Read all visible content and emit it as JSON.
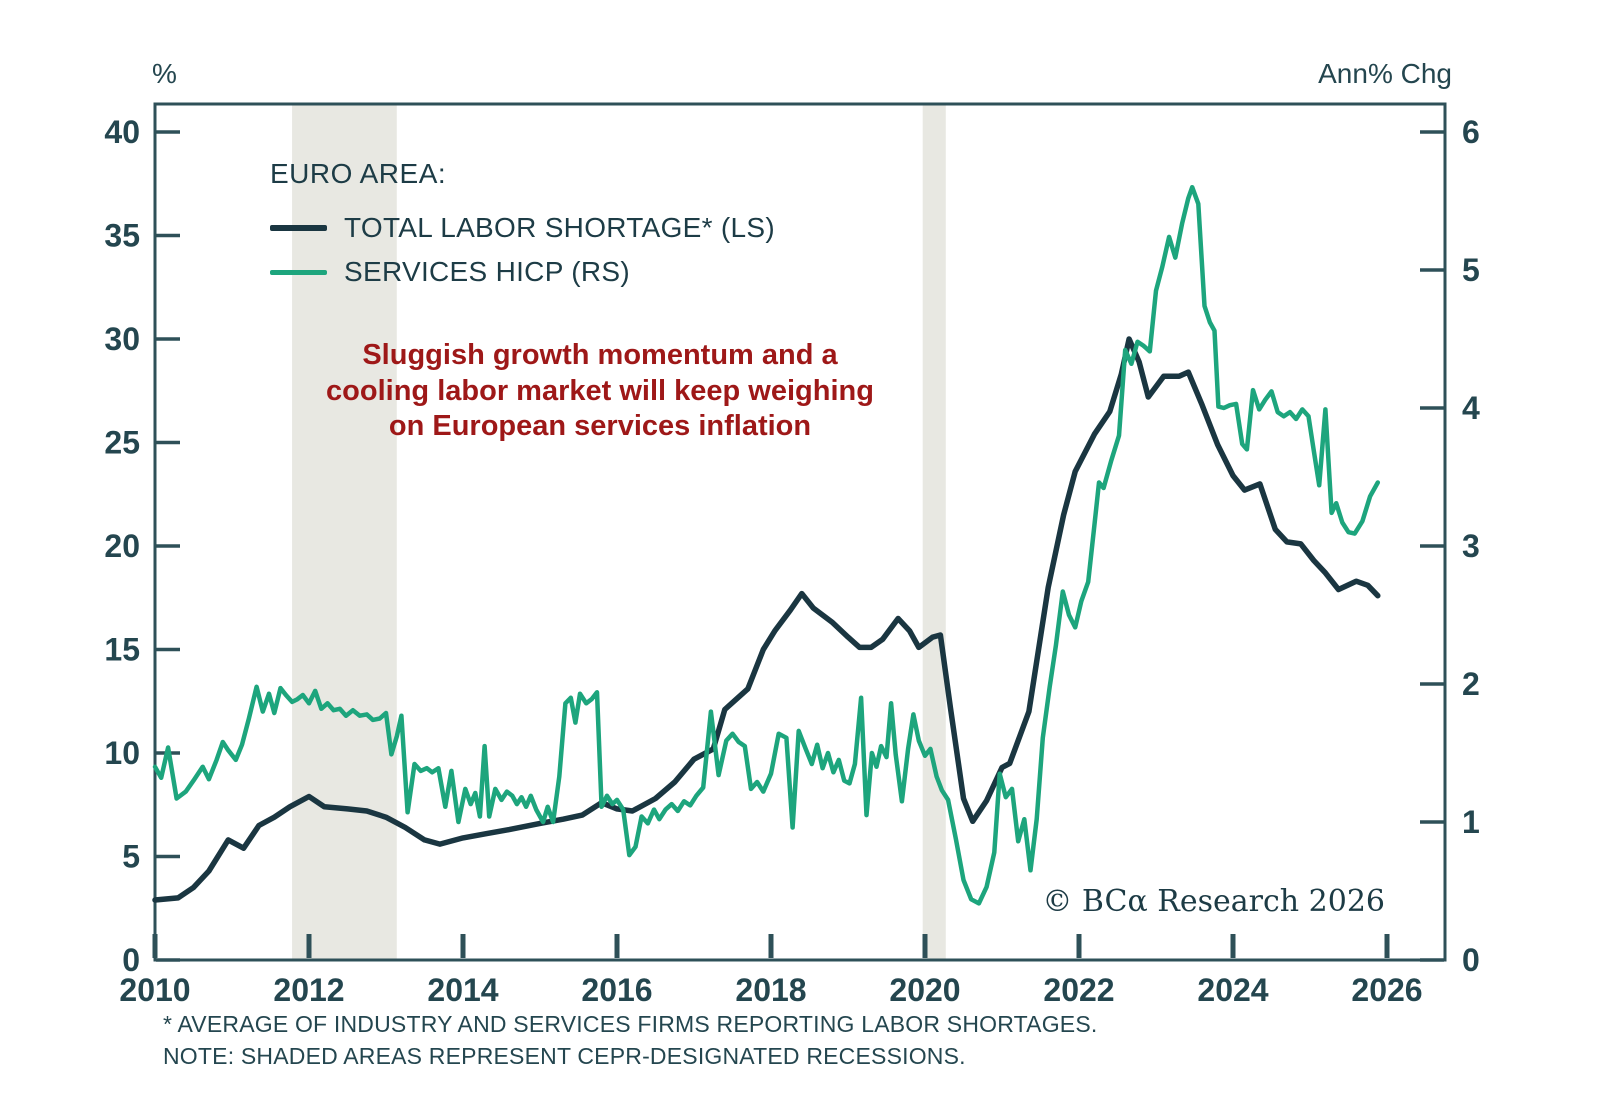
{
  "axes": {
    "left_unit": "%",
    "right_unit": "Ann% Chg"
  },
  "legend": {
    "heading": "EURO AREA:",
    "items": [
      {
        "label": "TOTAL LABOR SHORTAGE* (LS)",
        "color": "#1a3641"
      },
      {
        "label": "SERVICES HICP (RS)",
        "color": "#1da57d"
      }
    ]
  },
  "annotation": {
    "lines": [
      "Sluggish growth momentum and a",
      "cooling labor market will keep weighing",
      "on European services inflation"
    ]
  },
  "copyright": "© BCα Research 2026",
  "footnotes": [
    "* AVERAGE OF INDUSTRY AND SERVICES FIRMS REPORTING LABOR SHORTAGES.",
    "NOTE: SHADED AREAS REPRESENT CEPR-DESIGNATED RECESSIONS."
  ],
  "colors": {
    "navy": "#1a3641",
    "green": "#1da57d",
    "red": "#9e1818",
    "frame": "#2e5058",
    "band": "#e8e8e2"
  },
  "chart_data": {
    "type": "line",
    "title": "",
    "x_axis": {
      "range": [
        2010,
        2026.75
      ],
      "ticks": [
        2010,
        2012,
        2014,
        2016,
        2018,
        2020,
        2022,
        2024,
        2026
      ]
    },
    "left_axis": {
      "label": "%",
      "range": [
        0,
        41.3
      ],
      "ticks": [
        0,
        5,
        10,
        15,
        20,
        25,
        30,
        35,
        40
      ]
    },
    "right_axis": {
      "label": "Ann% Chg",
      "range": [
        0,
        6.2
      ],
      "ticks": [
        0,
        1,
        2,
        3,
        4,
        5,
        6
      ]
    },
    "grid": false,
    "legend_position": "top-left",
    "recession_bands": [
      [
        2011.78,
        2013.14
      ],
      [
        2019.97,
        2020.27
      ]
    ],
    "series": [
      {
        "name": "TOTAL LABOR SHORTAGE* (LS)",
        "axis": "left",
        "points": [
          [
            2010.0,
            2.9
          ],
          [
            2010.3,
            3.0
          ],
          [
            2010.5,
            3.5
          ],
          [
            2010.7,
            4.3
          ],
          [
            2010.95,
            5.8
          ],
          [
            2011.15,
            5.4
          ],
          [
            2011.35,
            6.5
          ],
          [
            2011.55,
            6.9
          ],
          [
            2011.75,
            7.4
          ],
          [
            2012.0,
            7.9
          ],
          [
            2012.2,
            7.4
          ],
          [
            2012.5,
            7.3
          ],
          [
            2012.75,
            7.2
          ],
          [
            2013.0,
            6.9
          ],
          [
            2013.25,
            6.4
          ],
          [
            2013.5,
            5.8
          ],
          [
            2013.7,
            5.6
          ],
          [
            2014.0,
            5.9
          ],
          [
            2014.3,
            6.1
          ],
          [
            2014.6,
            6.3
          ],
          [
            2015.0,
            6.6
          ],
          [
            2015.3,
            6.8
          ],
          [
            2015.55,
            7.0
          ],
          [
            2015.8,
            7.6
          ],
          [
            2016.0,
            7.3
          ],
          [
            2016.2,
            7.2
          ],
          [
            2016.5,
            7.8
          ],
          [
            2016.75,
            8.6
          ],
          [
            2017.0,
            9.7
          ],
          [
            2017.25,
            10.2
          ],
          [
            2017.4,
            12.1
          ],
          [
            2017.55,
            12.6
          ],
          [
            2017.7,
            13.1
          ],
          [
            2017.9,
            15.0
          ],
          [
            2018.05,
            15.9
          ],
          [
            2018.25,
            16.9
          ],
          [
            2018.4,
            17.7
          ],
          [
            2018.55,
            17.0
          ],
          [
            2018.8,
            16.3
          ],
          [
            2019.0,
            15.6
          ],
          [
            2019.15,
            15.1
          ],
          [
            2019.3,
            15.1
          ],
          [
            2019.45,
            15.5
          ],
          [
            2019.65,
            16.5
          ],
          [
            2019.8,
            15.9
          ],
          [
            2019.92,
            15.1
          ],
          [
            2020.1,
            15.6
          ],
          [
            2020.2,
            15.7
          ],
          [
            2020.33,
            12.2
          ],
          [
            2020.5,
            7.8
          ],
          [
            2020.62,
            6.7
          ],
          [
            2020.8,
            7.7
          ],
          [
            2021.0,
            9.3
          ],
          [
            2021.1,
            9.5
          ],
          [
            2021.35,
            12.0
          ],
          [
            2021.6,
            18.0
          ],
          [
            2021.8,
            21.5
          ],
          [
            2021.95,
            23.6
          ],
          [
            2022.2,
            25.4
          ],
          [
            2022.4,
            26.5
          ],
          [
            2022.55,
            28.3
          ],
          [
            2022.65,
            30.0
          ],
          [
            2022.78,
            28.9
          ],
          [
            2022.9,
            27.2
          ],
          [
            2023.1,
            28.2
          ],
          [
            2023.3,
            28.2
          ],
          [
            2023.42,
            28.4
          ],
          [
            2023.6,
            26.8
          ],
          [
            2023.8,
            24.9
          ],
          [
            2024.0,
            23.4
          ],
          [
            2024.15,
            22.7
          ],
          [
            2024.35,
            23.0
          ],
          [
            2024.55,
            20.8
          ],
          [
            2024.7,
            20.2
          ],
          [
            2024.88,
            20.1
          ],
          [
            2025.05,
            19.3
          ],
          [
            2025.2,
            18.7
          ],
          [
            2025.37,
            17.9
          ],
          [
            2025.6,
            18.3
          ],
          [
            2025.75,
            18.1
          ],
          [
            2025.88,
            17.6
          ]
        ]
      },
      {
        "name": "SERVICES HICP (RS)",
        "axis": "right",
        "points": [
          [
            2010.0,
            1.4
          ],
          [
            2010.08,
            1.32
          ],
          [
            2010.17,
            1.54
          ],
          [
            2010.28,
            1.17
          ],
          [
            2010.4,
            1.22
          ],
          [
            2010.5,
            1.3
          ],
          [
            2010.62,
            1.4
          ],
          [
            2010.7,
            1.31
          ],
          [
            2010.8,
            1.45
          ],
          [
            2010.88,
            1.58
          ],
          [
            2010.95,
            1.52
          ],
          [
            2011.05,
            1.45
          ],
          [
            2011.13,
            1.56
          ],
          [
            2011.22,
            1.75
          ],
          [
            2011.32,
            1.98
          ],
          [
            2011.4,
            1.8
          ],
          [
            2011.48,
            1.93
          ],
          [
            2011.55,
            1.79
          ],
          [
            2011.63,
            1.97
          ],
          [
            2011.7,
            1.92
          ],
          [
            2011.78,
            1.87
          ],
          [
            2011.85,
            1.89
          ],
          [
            2011.92,
            1.92
          ],
          [
            2012.0,
            1.86
          ],
          [
            2012.08,
            1.95
          ],
          [
            2012.16,
            1.82
          ],
          [
            2012.24,
            1.86
          ],
          [
            2012.32,
            1.81
          ],
          [
            2012.4,
            1.82
          ],
          [
            2012.48,
            1.77
          ],
          [
            2012.57,
            1.81
          ],
          [
            2012.66,
            1.77
          ],
          [
            2012.75,
            1.78
          ],
          [
            2012.83,
            1.74
          ],
          [
            2012.92,
            1.75
          ],
          [
            2013.0,
            1.79
          ],
          [
            2013.07,
            1.49
          ],
          [
            2013.14,
            1.62
          ],
          [
            2013.2,
            1.77
          ],
          [
            2013.28,
            1.07
          ],
          [
            2013.37,
            1.42
          ],
          [
            2013.45,
            1.37
          ],
          [
            2013.53,
            1.39
          ],
          [
            2013.6,
            1.36
          ],
          [
            2013.68,
            1.39
          ],
          [
            2013.77,
            1.11
          ],
          [
            2013.85,
            1.37
          ],
          [
            2013.94,
            1.0
          ],
          [
            2014.03,
            1.24
          ],
          [
            2014.1,
            1.13
          ],
          [
            2014.16,
            1.21
          ],
          [
            2014.22,
            1.04
          ],
          [
            2014.28,
            1.55
          ],
          [
            2014.34,
            1.04
          ],
          [
            2014.42,
            1.24
          ],
          [
            2014.5,
            1.16
          ],
          [
            2014.57,
            1.22
          ],
          [
            2014.64,
            1.19
          ],
          [
            2014.7,
            1.13
          ],
          [
            2014.76,
            1.18
          ],
          [
            2014.82,
            1.11
          ],
          [
            2014.88,
            1.19
          ],
          [
            2014.95,
            1.09
          ],
          [
            2015.04,
            1.0
          ],
          [
            2015.1,
            1.11
          ],
          [
            2015.17,
            1.0
          ],
          [
            2015.25,
            1.33
          ],
          [
            2015.33,
            1.86
          ],
          [
            2015.4,
            1.9
          ],
          [
            2015.46,
            1.72
          ],
          [
            2015.52,
            1.93
          ],
          [
            2015.6,
            1.86
          ],
          [
            2015.67,
            1.89
          ],
          [
            2015.74,
            1.94
          ],
          [
            2015.8,
            1.11
          ],
          [
            2015.87,
            1.19
          ],
          [
            2015.94,
            1.13
          ],
          [
            2016.0,
            1.16
          ],
          [
            2016.08,
            1.09
          ],
          [
            2016.16,
            0.76
          ],
          [
            2016.24,
            0.82
          ],
          [
            2016.32,
            1.04
          ],
          [
            2016.4,
            0.99
          ],
          [
            2016.48,
            1.09
          ],
          [
            2016.55,
            1.02
          ],
          [
            2016.63,
            1.09
          ],
          [
            2016.71,
            1.13
          ],
          [
            2016.79,
            1.08
          ],
          [
            2016.87,
            1.15
          ],
          [
            2016.95,
            1.12
          ],
          [
            2017.03,
            1.19
          ],
          [
            2017.12,
            1.25
          ],
          [
            2017.22,
            1.8
          ],
          [
            2017.32,
            1.34
          ],
          [
            2017.42,
            1.59
          ],
          [
            2017.5,
            1.64
          ],
          [
            2017.58,
            1.58
          ],
          [
            2017.66,
            1.55
          ],
          [
            2017.74,
            1.24
          ],
          [
            2017.82,
            1.29
          ],
          [
            2017.9,
            1.22
          ],
          [
            2018.0,
            1.35
          ],
          [
            2018.1,
            1.64
          ],
          [
            2018.2,
            1.61
          ],
          [
            2018.28,
            0.96
          ],
          [
            2018.36,
            1.66
          ],
          [
            2018.45,
            1.53
          ],
          [
            2018.53,
            1.42
          ],
          [
            2018.6,
            1.56
          ],
          [
            2018.67,
            1.39
          ],
          [
            2018.74,
            1.5
          ],
          [
            2018.81,
            1.36
          ],
          [
            2018.88,
            1.45
          ],
          [
            2018.95,
            1.3
          ],
          [
            2019.02,
            1.28
          ],
          [
            2019.09,
            1.42
          ],
          [
            2019.17,
            1.9
          ],
          [
            2019.24,
            1.05
          ],
          [
            2019.31,
            1.5
          ],
          [
            2019.37,
            1.4
          ],
          [
            2019.43,
            1.55
          ],
          [
            2019.5,
            1.47
          ],
          [
            2019.56,
            1.86
          ],
          [
            2019.62,
            1.49
          ],
          [
            2019.7,
            1.15
          ],
          [
            2019.78,
            1.53
          ],
          [
            2019.85,
            1.78
          ],
          [
            2019.92,
            1.59
          ],
          [
            2020.0,
            1.48
          ],
          [
            2020.07,
            1.53
          ],
          [
            2020.15,
            1.33
          ],
          [
            2020.22,
            1.23
          ],
          [
            2020.3,
            1.16
          ],
          [
            2020.4,
            0.88
          ],
          [
            2020.5,
            0.58
          ],
          [
            2020.6,
            0.44
          ],
          [
            2020.7,
            0.41
          ],
          [
            2020.8,
            0.53
          ],
          [
            2020.9,
            0.78
          ],
          [
            2020.97,
            1.35
          ],
          [
            2021.05,
            1.18
          ],
          [
            2021.13,
            1.24
          ],
          [
            2021.21,
            0.86
          ],
          [
            2021.29,
            1.02
          ],
          [
            2021.37,
            0.65
          ],
          [
            2021.45,
            1.02
          ],
          [
            2021.53,
            1.61
          ],
          [
            2021.62,
            1.98
          ],
          [
            2021.7,
            2.28
          ],
          [
            2021.79,
            2.67
          ],
          [
            2021.87,
            2.5
          ],
          [
            2021.95,
            2.41
          ],
          [
            2022.03,
            2.6
          ],
          [
            2022.12,
            2.74
          ],
          [
            2022.2,
            3.15
          ],
          [
            2022.26,
            3.46
          ],
          [
            2022.32,
            3.42
          ],
          [
            2022.42,
            3.62
          ],
          [
            2022.52,
            3.8
          ],
          [
            2022.6,
            4.42
          ],
          [
            2022.68,
            4.32
          ],
          [
            2022.76,
            4.48
          ],
          [
            2022.84,
            4.45
          ],
          [
            2022.92,
            4.41
          ],
          [
            2023.0,
            4.85
          ],
          [
            2023.08,
            5.02
          ],
          [
            2023.17,
            5.24
          ],
          [
            2023.25,
            5.09
          ],
          [
            2023.34,
            5.34
          ],
          [
            2023.42,
            5.52
          ],
          [
            2023.47,
            5.6
          ],
          [
            2023.55,
            5.48
          ],
          [
            2023.63,
            4.74
          ],
          [
            2023.7,
            4.62
          ],
          [
            2023.76,
            4.56
          ],
          [
            2023.81,
            4.01
          ],
          [
            2023.88,
            4.0
          ],
          [
            2023.96,
            4.02
          ],
          [
            2024.04,
            4.03
          ],
          [
            2024.12,
            3.74
          ],
          [
            2024.18,
            3.7
          ],
          [
            2024.26,
            4.13
          ],
          [
            2024.34,
            3.99
          ],
          [
            2024.42,
            4.06
          ],
          [
            2024.5,
            4.12
          ],
          [
            2024.58,
            3.97
          ],
          [
            2024.66,
            3.94
          ],
          [
            2024.74,
            3.97
          ],
          [
            2024.82,
            3.92
          ],
          [
            2024.9,
            3.99
          ],
          [
            2024.98,
            3.94
          ],
          [
            2025.05,
            3.69
          ],
          [
            2025.12,
            3.44
          ],
          [
            2025.2,
            3.99
          ],
          [
            2025.28,
            3.24
          ],
          [
            2025.34,
            3.31
          ],
          [
            2025.42,
            3.17
          ],
          [
            2025.5,
            3.1
          ],
          [
            2025.58,
            3.09
          ],
          [
            2025.68,
            3.18
          ],
          [
            2025.78,
            3.36
          ],
          [
            2025.88,
            3.46
          ]
        ]
      }
    ]
  }
}
